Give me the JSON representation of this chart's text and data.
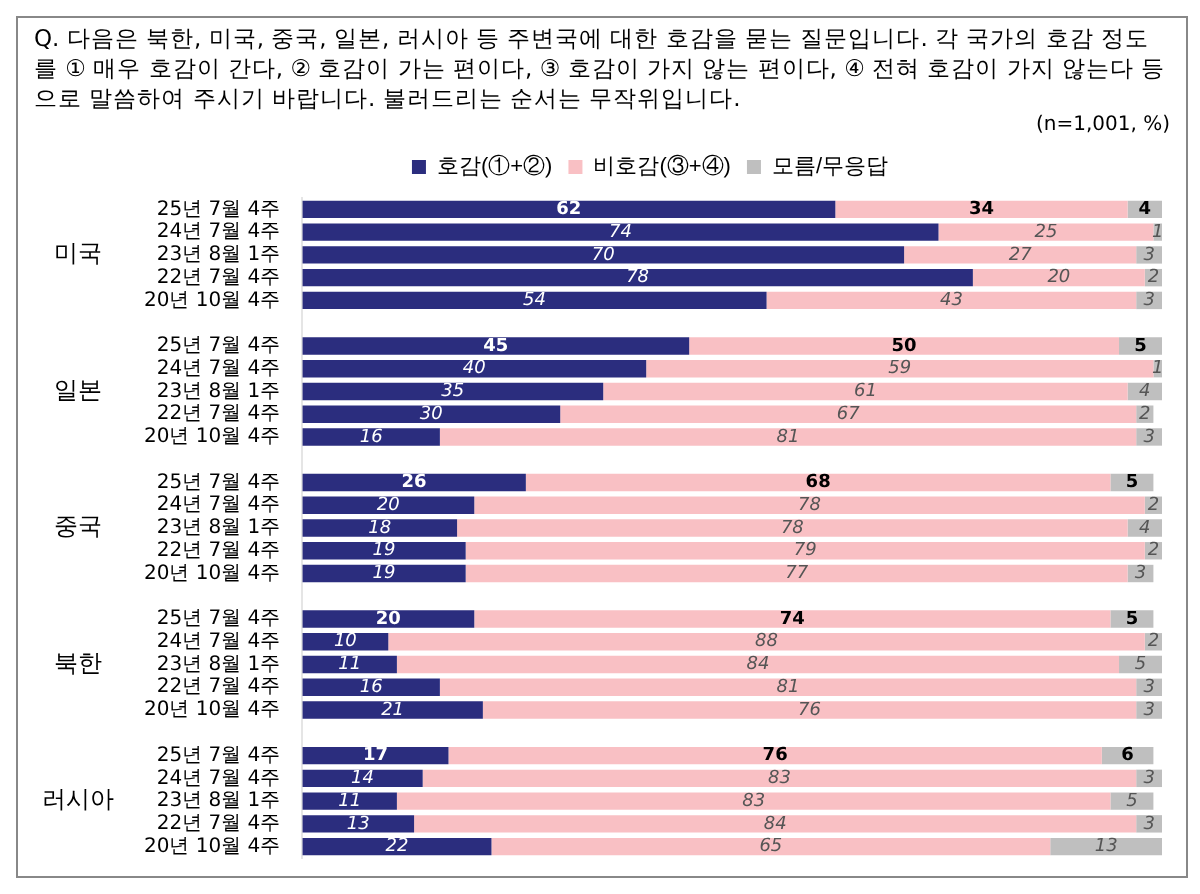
{
  "chart_data": {
    "type": "bar",
    "orientation": "horizontal",
    "stacked": true,
    "title": "Q. 다음은 북한, 미국, 중국, 일본, 러시아 등 주변국에 대한 호감을 묻는 질문입니다. 각 국가의 호감 정도를 ① 매우 호감이 간다, ② 호감이 가는 편이다, ③ 호감이 가지 않는 편이다, ④ 전혀 호감이 가지 않는다 등으로 말씀하여 주시기 바랍니다. 불러드리는 순서는 무작위입니다.",
    "subtitle": "(n=1,001,  %)",
    "categories": [
      "25년 7월 4주",
      "24년 7월 4주",
      "23년 8월 1주",
      "22년 7월 4주",
      "20년 10월 4주",
      null,
      "25년 7월 4주",
      "24년 7월 4주",
      "23년 8월 1주",
      "22년 7월 4주",
      "20년 10월 4주",
      null,
      "25년 7월 4주",
      "24년 7월 4주",
      "23년 8월 1주",
      "22년 7월 4주",
      "20년 10월 4주",
      null,
      "25년 7월 4주",
      "24년 7월 4주",
      "23년 8월 1주",
      "22년 7월 4주",
      "20년 10월 4주",
      null,
      "25년 7월 4주",
      "24년 7월 4주",
      "23년 8월 1주",
      "22년 7월 4주",
      "20년 10월 4주"
    ],
    "series": [
      {
        "name": "호감(①+②)",
        "color": "#2b2d7e",
        "values": [
          62,
          74,
          70,
          78,
          54,
          null,
          45,
          40,
          35,
          30,
          16,
          null,
          26,
          20,
          18,
          19,
          19,
          null,
          20,
          10,
          11,
          16,
          21,
          null,
          17,
          14,
          11,
          13,
          22
        ]
      },
      {
        "name": "비호감(③+④)",
        "color": "#f9c0c4",
        "values": [
          34,
          25,
          27,
          20,
          43,
          null,
          50,
          59,
          61,
          67,
          81,
          null,
          68,
          78,
          78,
          79,
          77,
          null,
          74,
          88,
          84,
          81,
          76,
          null,
          76,
          83,
          83,
          84,
          65
        ]
      },
      {
        "name": "모름/무응답",
        "color": "#bfbfbf",
        "values": [
          4,
          1,
          3,
          2,
          3,
          null,
          5,
          1,
          4,
          2,
          3,
          null,
          5,
          2,
          4,
          2,
          3,
          null,
          5,
          2,
          5,
          3,
          3,
          null,
          6,
          3,
          5,
          3,
          13
        ]
      }
    ],
    "xlim": [
      0,
      100
    ],
    "tick_labels": "y",
    "data_labels": true,
    "legend": "top",
    "grid": false,
    "annotations": [
      "미국",
      "일본",
      "중국",
      "북한",
      "러시아"
    ]
  }
}
